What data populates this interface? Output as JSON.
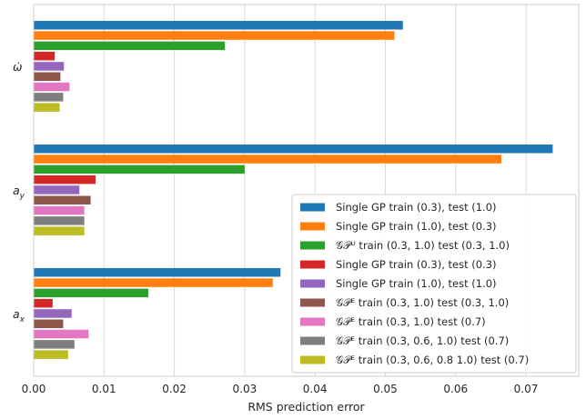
{
  "chart_data": {
    "type": "bar",
    "orientation": "horizontal",
    "categories": [
      "ω̇",
      "a_y",
      "a_x"
    ],
    "category_display": [
      {
        "base": "ω̇",
        "sub": ""
      },
      {
        "base": "a",
        "sub": "y"
      },
      {
        "base": "a",
        "sub": "x"
      }
    ],
    "xlabel": "RMS prediction error",
    "ylabel": "",
    "xlim": [
      0.0,
      0.0775
    ],
    "xticks": [
      "0.00",
      "0.01",
      "0.02",
      "0.03",
      "0.04",
      "0.05",
      "0.06",
      "0.07"
    ],
    "grid": true,
    "legend_position": "lower right",
    "series": [
      {
        "name": "Single GP train (0.3), test (1.0)",
        "color": "#1f77b4",
        "values": [
          0.0525,
          0.0738,
          0.0351
        ]
      },
      {
        "name": "Single GP train (1.0), test (0.3)",
        "color": "#ff7f0e",
        "values": [
          0.0513,
          0.0665,
          0.034
        ]
      },
      {
        "name": "𝒢𝒫ᵁ train (0.3, 1.0) test (0.3, 1.0)",
        "color": "#2ca02c",
        "values": [
          0.0272,
          0.03,
          0.0163
        ]
      },
      {
        "name": "Single GP train (0.3), test (0.3)",
        "color": "#d62728",
        "values": [
          0.003,
          0.0088,
          0.0027
        ]
      },
      {
        "name": "Single GP train (1.0), test (1.0)",
        "color": "#9467bd",
        "values": [
          0.0043,
          0.0065,
          0.0054
        ]
      },
      {
        "name": "𝒢𝒫ᴱ train (0.3, 1.0) test (0.3, 1.0)",
        "color": "#8c564b",
        "values": [
          0.0038,
          0.0081,
          0.0042
        ]
      },
      {
        "name": "𝒢𝒫ᴱ train (0.3, 1.0) test (0.7)",
        "color": "#e377c2",
        "values": [
          0.0051,
          0.0072,
          0.0078
        ]
      },
      {
        "name": "𝒢𝒫ᴱ train (0.3, 0.6, 1.0) test (0.7)",
        "color": "#7f7f7f",
        "values": [
          0.0042,
          0.0072,
          0.0058
        ]
      },
      {
        "name": "𝒢𝒫ᴱ train (0.3, 0.6, 0.8 1.0) test (0.7)",
        "color": "#bcbd22",
        "values": [
          0.0037,
          0.0072,
          0.0049
        ]
      }
    ]
  }
}
